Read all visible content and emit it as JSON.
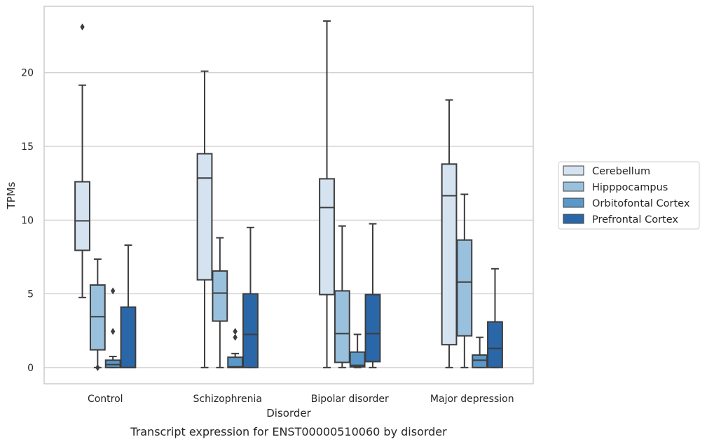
{
  "chart_data": {
    "type": "box",
    "title": "",
    "caption": "Transcript expression for ENST00000510060 by disorder",
    "xlabel": "Disorder",
    "ylabel": "TPMs",
    "ylim": [
      -1.1,
      24.5
    ],
    "yticks": [
      0,
      5,
      10,
      15,
      20
    ],
    "grid": "horizontal",
    "legend_position": "right",
    "categories": [
      "Control",
      "Schizophrenia",
      "Bipolar disorder",
      "Major depression"
    ],
    "series": [
      {
        "name": "Cerebellum",
        "color": "#d5e3f0",
        "boxes": [
          {
            "min": 4.75,
            "q1": 7.95,
            "median": 9.95,
            "q3": 12.6,
            "max": 19.15,
            "outliers": [
              23.1
            ]
          },
          {
            "min": 0.0,
            "q1": 5.95,
            "median": 12.85,
            "q3": 14.5,
            "max": 20.1,
            "outliers": []
          },
          {
            "min": 0.0,
            "q1": 4.95,
            "median": 10.85,
            "q3": 12.8,
            "max": 23.5,
            "outliers": []
          },
          {
            "min": 0.0,
            "q1": 1.55,
            "median": 11.65,
            "q3": 13.8,
            "max": 18.15,
            "outliers": []
          }
        ]
      },
      {
        "name": "Hipppocampus",
        "color": "#99c0dc",
        "boxes": [
          {
            "min": 0.0,
            "q1": 1.2,
            "median": 3.45,
            "q3": 5.6,
            "max": 7.35,
            "outliers": [
              0.0
            ]
          },
          {
            "min": 0.0,
            "q1": 3.15,
            "median": 5.05,
            "q3": 6.55,
            "max": 8.8,
            "outliers": []
          },
          {
            "min": 0.0,
            "q1": 0.35,
            "median": 2.3,
            "q3": 5.2,
            "max": 9.6,
            "outliers": []
          },
          {
            "min": 0.0,
            "q1": 2.15,
            "median": 5.8,
            "q3": 8.65,
            "max": 11.75,
            "outliers": []
          }
        ]
      },
      {
        "name": "Orbitofontal Cortex",
        "color": "#5a98c9",
        "boxes": [
          {
            "min": 0.0,
            "q1": 0.0,
            "median": 0.2,
            "q3": 0.5,
            "max": 0.75,
            "outliers": [
              5.2,
              2.45
            ]
          },
          {
            "min": 0.0,
            "q1": 0.0,
            "median": 0.05,
            "q3": 0.7,
            "max": 0.95,
            "outliers": [
              2.45,
              2.05
            ]
          },
          {
            "min": 0.0,
            "q1": 0.05,
            "median": 0.15,
            "q3": 1.05,
            "max": 2.25,
            "outliers": []
          },
          {
            "min": 0.0,
            "q1": 0.0,
            "median": 0.5,
            "q3": 0.85,
            "max": 2.05,
            "outliers": []
          }
        ]
      },
      {
        "name": "Prefrontal Cortex",
        "color": "#2a67a8",
        "boxes": [
          {
            "min": 0.0,
            "q1": 0.0,
            "median": 0.0,
            "q3": 4.1,
            "max": 8.3,
            "outliers": []
          },
          {
            "min": 0.0,
            "q1": 0.0,
            "median": 2.25,
            "q3": 5.0,
            "max": 9.5,
            "outliers": []
          },
          {
            "min": 0.0,
            "q1": 0.4,
            "median": 2.3,
            "q3": 4.95,
            "max": 9.75,
            "outliers": []
          },
          {
            "min": 0.0,
            "q1": 0.0,
            "median": 1.3,
            "q3": 3.1,
            "max": 6.7,
            "outliers": []
          }
        ]
      }
    ]
  }
}
